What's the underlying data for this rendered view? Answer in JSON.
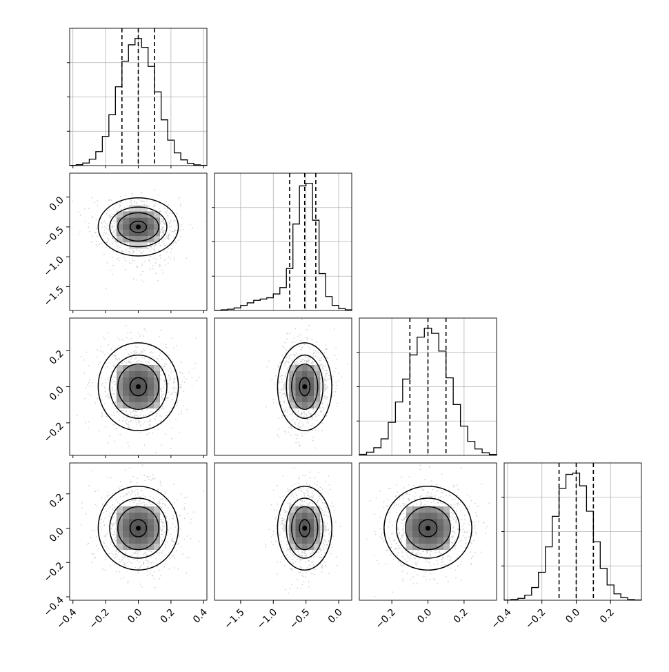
{
  "figure": {
    "type": "corner-plot",
    "ink_color": "#000000",
    "grid_color": "#b0b0b0",
    "point_color": "#c8c8c8"
  },
  "chart_data": [
    {
      "type": "histogram",
      "panel": "0-0",
      "x": [
        -0.42,
        -0.38,
        -0.34,
        -0.3,
        -0.26,
        -0.22,
        -0.18,
        -0.14,
        -0.1,
        -0.06,
        -0.02,
        0.02,
        0.06,
        0.1,
        0.14,
        0.18,
        0.22,
        0.26,
        0.3,
        0.34,
        0.38,
        0.42
      ],
      "counts": [
        0.002,
        0.007,
        0.02,
        0.05,
        0.11,
        0.23,
        0.4,
        0.62,
        0.82,
        0.95,
        1.0,
        0.93,
        0.78,
        0.58,
        0.36,
        0.2,
        0.1,
        0.045,
        0.018,
        0.006,
        0.002
      ],
      "quantiles": [
        -0.1,
        0.0,
        0.1
      ],
      "xlim": [
        -0.42,
        0.42
      ],
      "grid": true
    },
    {
      "type": "histogram",
      "panel": "1-1",
      "x": [
        -1.9,
        -1.8,
        -1.7,
        -1.6,
        -1.5,
        -1.4,
        -1.3,
        -1.2,
        -1.1,
        -1.0,
        -0.9,
        -0.8,
        -0.7,
        -0.6,
        -0.5,
        -0.4,
        -0.3,
        -0.2,
        -0.1,
        0.0,
        0.1,
        0.2
      ],
      "counts": [
        0.0,
        0.005,
        0.01,
        0.02,
        0.04,
        0.06,
        0.08,
        0.09,
        0.1,
        0.13,
        0.18,
        0.33,
        0.68,
        0.98,
        1.0,
        0.71,
        0.29,
        0.11,
        0.04,
        0.015,
        0.005
      ],
      "quantiles": [
        -0.75,
        -0.52,
        -0.35
      ],
      "xlim": [
        -1.9,
        0.2
      ],
      "grid": true
    },
    {
      "type": "histogram",
      "panel": "2-2",
      "x": [
        -0.38,
        -0.34,
        -0.3,
        -0.26,
        -0.22,
        -0.18,
        -0.14,
        -0.1,
        -0.06,
        -0.02,
        0.02,
        0.06,
        0.1,
        0.14,
        0.18,
        0.22,
        0.26,
        0.3,
        0.34,
        0.38
      ],
      "counts": [
        0.008,
        0.025,
        0.06,
        0.13,
        0.26,
        0.42,
        0.6,
        0.79,
        0.93,
        1.0,
        0.96,
        0.82,
        0.61,
        0.4,
        0.23,
        0.11,
        0.05,
        0.02,
        0.007
      ],
      "quantiles": [
        -0.1,
        0.0,
        0.1
      ],
      "xlim": [
        -0.38,
        0.38
      ],
      "grid": true
    },
    {
      "type": "histogram",
      "panel": "3-3",
      "x": [
        -0.42,
        -0.38,
        -0.34,
        -0.3,
        -0.26,
        -0.22,
        -0.18,
        -0.14,
        -0.1,
        -0.06,
        -0.02,
        0.02,
        0.06,
        0.1,
        0.14,
        0.18,
        0.22,
        0.26,
        0.3,
        0.34,
        0.38
      ],
      "counts": [
        0.002,
        0.006,
        0.015,
        0.04,
        0.1,
        0.22,
        0.42,
        0.66,
        0.88,
        0.99,
        1.0,
        0.9,
        0.7,
        0.46,
        0.25,
        0.12,
        0.05,
        0.02,
        0.005,
        0.002
      ],
      "quantiles": [
        -0.1,
        0.0,
        0.1
      ],
      "xlim": [
        -0.42,
        0.38
      ],
      "grid": true
    },
    {
      "type": "scatter-density",
      "panel": "1-0",
      "center": [
        0.0,
        -0.5
      ],
      "spread": [
        0.1,
        0.19
      ],
      "tail": "y-lower",
      "xlim": [
        -0.42,
        0.42
      ],
      "ylim": [
        -1.9,
        0.4
      ],
      "contour_levels": [
        "0.5",
        "1.0",
        "1.5",
        "2.0"
      ]
    },
    {
      "type": "scatter-density",
      "panel": "2-0",
      "center": [
        0.0,
        0.0
      ],
      "spread": [
        0.1,
        0.1
      ],
      "xlim": [
        -0.42,
        0.42
      ],
      "ylim": [
        -0.38,
        0.38
      ]
    },
    {
      "type": "scatter-density",
      "panel": "2-1",
      "center": [
        -0.52,
        0.0
      ],
      "spread": [
        0.16,
        0.1
      ],
      "xlim": [
        -1.9,
        0.2
      ],
      "ylim": [
        -0.38,
        0.38
      ]
    },
    {
      "type": "scatter-density",
      "panel": "3-0",
      "center": [
        0.0,
        0.0
      ],
      "spread": [
        0.1,
        0.1
      ],
      "xlim": [
        -0.42,
        0.42
      ],
      "ylim": [
        -0.42,
        0.38
      ]
    },
    {
      "type": "scatter-density",
      "panel": "3-1",
      "center": [
        -0.52,
        0.0
      ],
      "spread": [
        0.16,
        0.1
      ],
      "xlim": [
        -1.9,
        0.2
      ],
      "ylim": [
        -0.42,
        0.38
      ]
    },
    {
      "type": "scatter-density",
      "panel": "3-2",
      "center": [
        0.0,
        0.0
      ],
      "spread": [
        0.1,
        0.1
      ],
      "xlim": [
        -0.38,
        0.38
      ],
      "ylim": [
        -0.42,
        0.38
      ]
    }
  ],
  "ticks": {
    "x0": [
      {
        "v": -0.4,
        "t": "−0.4"
      },
      {
        "v": -0.2,
        "t": "−0.2"
      },
      {
        "v": 0.0,
        "t": "0.0"
      },
      {
        "v": 0.2,
        "t": "0.2"
      },
      {
        "v": 0.4,
        "t": "0.4"
      }
    ],
    "x1": [
      {
        "v": -1.5,
        "t": "−1.5"
      },
      {
        "v": -1.0,
        "t": "−1.0"
      },
      {
        "v": -0.5,
        "t": "−0.5"
      },
      {
        "v": 0.0,
        "t": "0.0"
      }
    ],
    "x2": [
      {
        "v": -0.2,
        "t": "−0.2"
      },
      {
        "v": 0.0,
        "t": "0.0"
      },
      {
        "v": 0.2,
        "t": "0.2"
      }
    ],
    "x3": [
      {
        "v": -0.4,
        "t": "−0.4"
      },
      {
        "v": -0.2,
        "t": "−0.2"
      },
      {
        "v": 0.0,
        "t": "0.0"
      },
      {
        "v": 0.2,
        "t": "0.2"
      }
    ],
    "y1": [
      {
        "v": 0.0,
        "t": "0.0"
      },
      {
        "v": -0.5,
        "t": "−0.5"
      },
      {
        "v": -1.0,
        "t": "−1.0"
      },
      {
        "v": -1.5,
        "t": "−1.5"
      }
    ],
    "y2": [
      {
        "v": 0.2,
        "t": "0.2"
      },
      {
        "v": 0.0,
        "t": "0.0"
      },
      {
        "v": -0.2,
        "t": "−0.2"
      }
    ],
    "y3": [
      {
        "v": 0.2,
        "t": "0.2"
      },
      {
        "v": 0.0,
        "t": "0.0"
      },
      {
        "v": -0.2,
        "t": "−0.2"
      },
      {
        "v": -0.4,
        "t": "−0.4"
      }
    ]
  }
}
